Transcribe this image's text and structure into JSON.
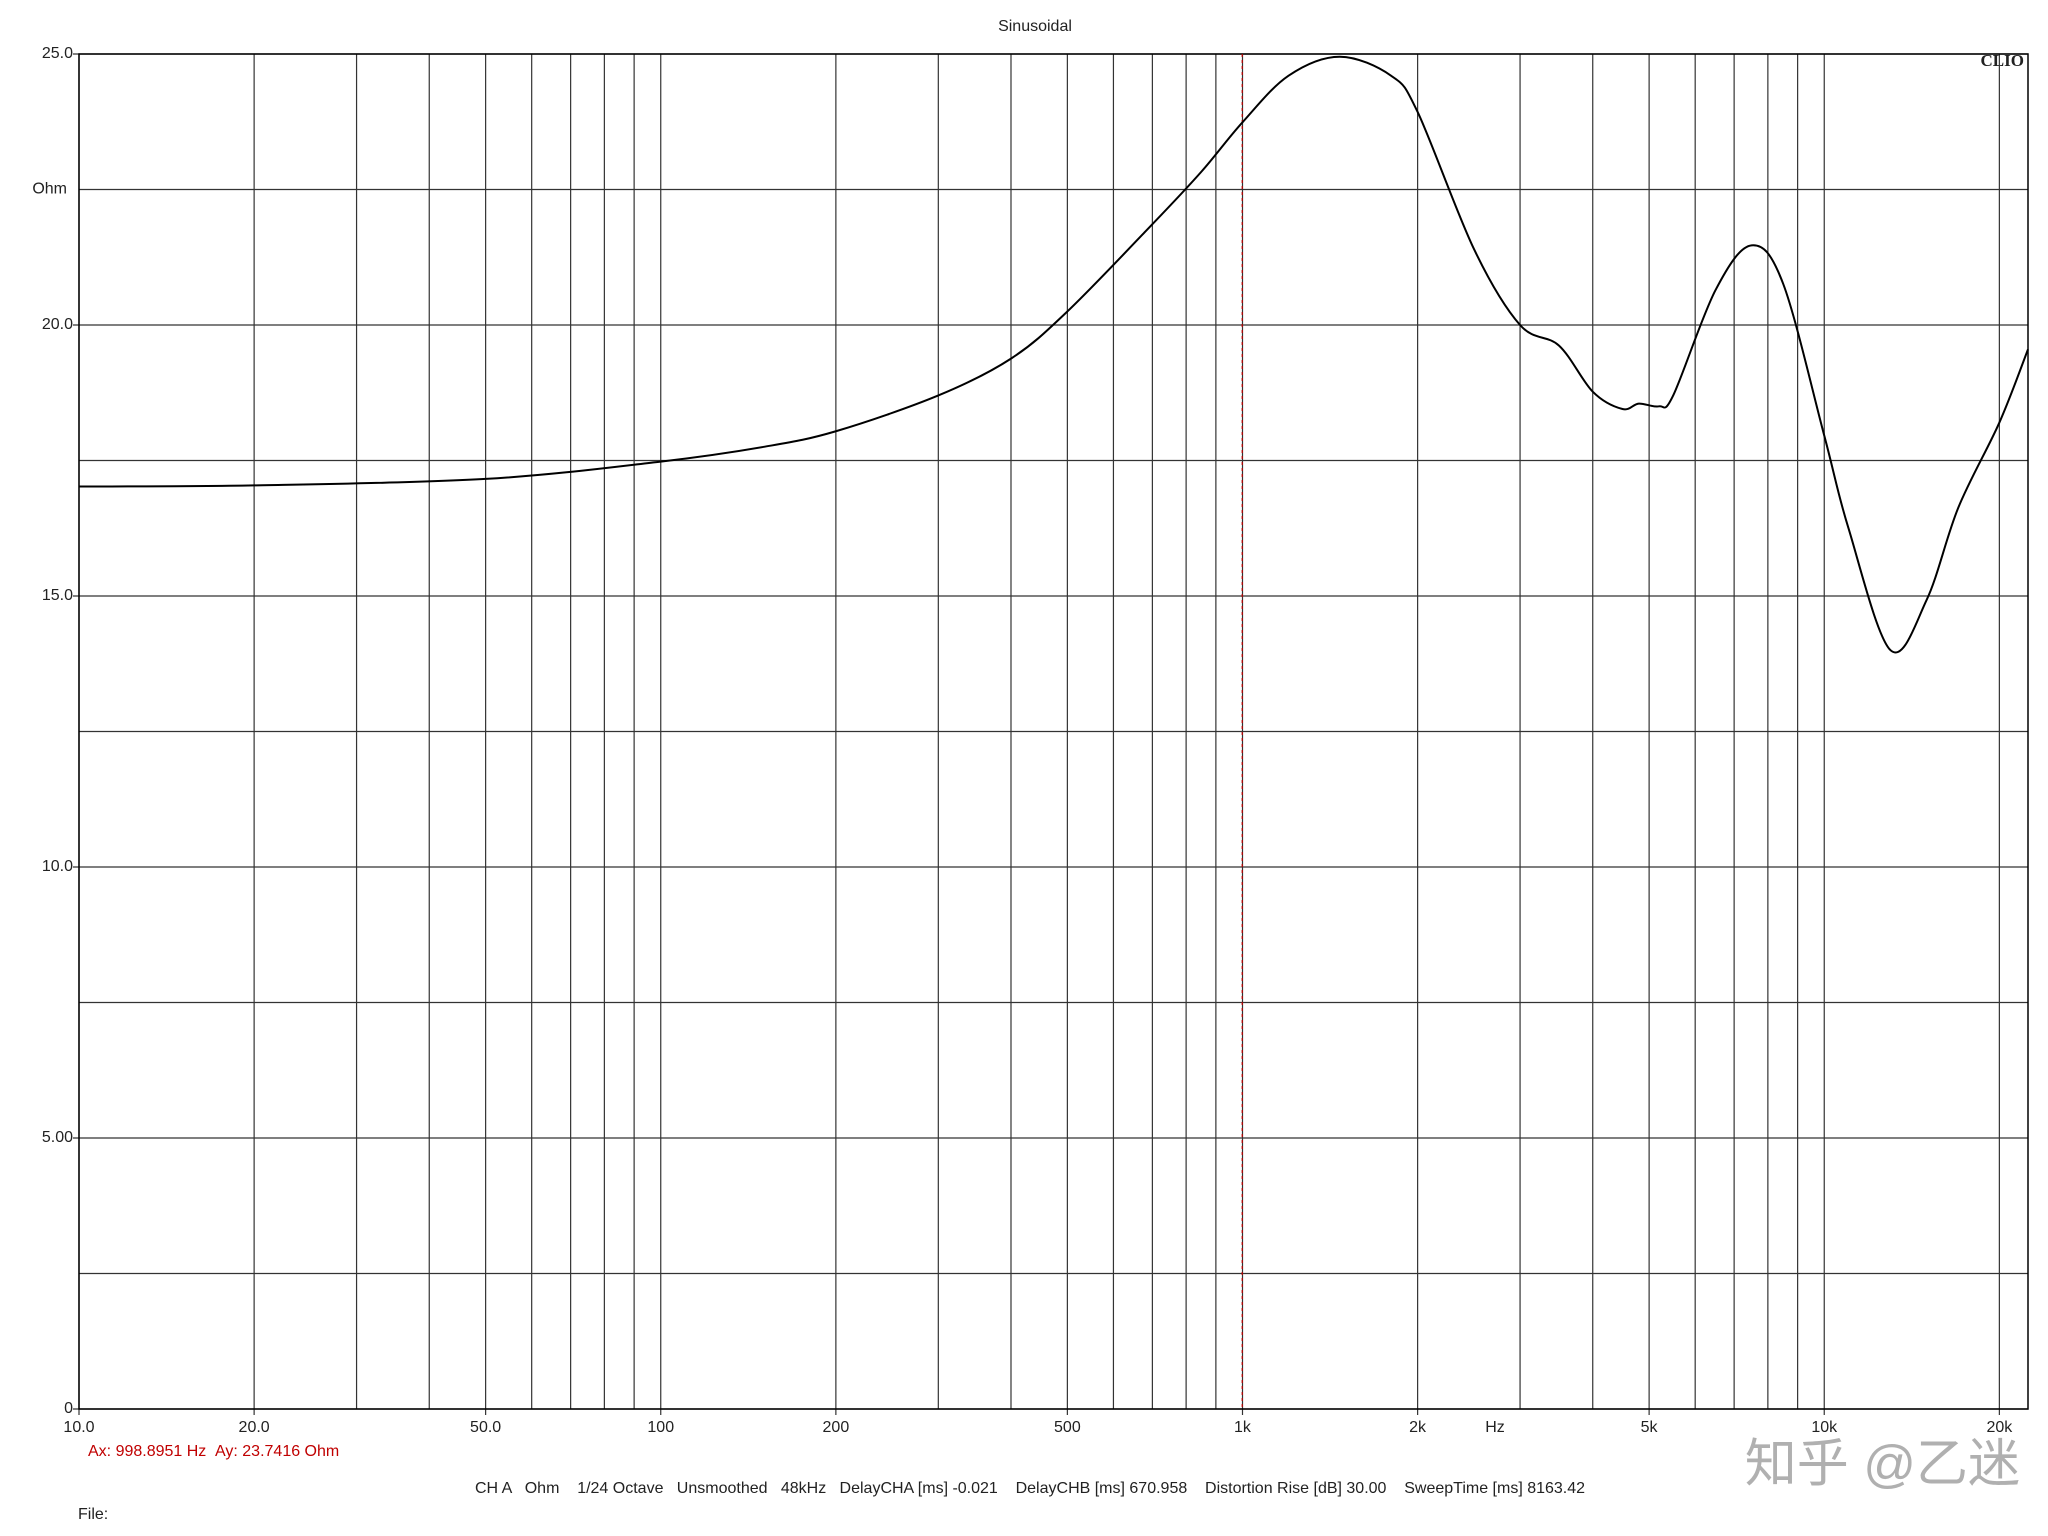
{
  "chart_data": {
    "type": "line",
    "title": "Sinusoidal",
    "y_label": "Ohm",
    "x_label": "Hz",
    "brand": "CLIO",
    "x_log": true,
    "xlim": [
      10,
      22400
    ],
    "ylim": [
      0,
      25
    ],
    "xticks": [
      {
        "value": 10,
        "label": "10.0"
      },
      {
        "value": 20,
        "label": "20.0"
      },
      {
        "value": 50,
        "label": "50.0"
      },
      100,
      200,
      500,
      {
        "value": 1000,
        "label": "1k"
      },
      {
        "value": 2000,
        "label": "2k"
      },
      {
        "value": 5000,
        "label": "5k"
      },
      {
        "value": 10000,
        "label": "10k"
      },
      {
        "value": 20000,
        "label": "20k"
      }
    ],
    "xgrid": [
      10,
      20,
      30,
      40,
      50,
      60,
      70,
      80,
      90,
      100,
      200,
      300,
      400,
      500,
      600,
      700,
      800,
      900,
      1000,
      2000,
      3000,
      4000,
      5000,
      6000,
      7000,
      8000,
      9000,
      10000,
      20000
    ],
    "yticks": [
      0,
      {
        "value": 5,
        "label": "5.00"
      },
      {
        "value": 10,
        "label": "10.0"
      },
      {
        "value": 15,
        "label": "15.0"
      },
      {
        "value": 20,
        "label": "20.0"
      },
      {
        "value": 25,
        "label": "25.0"
      }
    ],
    "ygrid": [
      2.5,
      7.5,
      12.5,
      17.5,
      22.5
    ],
    "series": [
      {
        "name": "CH A",
        "color": "#000000",
        "x": [
          10,
          20,
          50,
          100,
          150,
          200,
          300,
          400,
          500,
          700,
          850,
          1000,
          1200,
          1470,
          1800,
          2000,
          2500,
          3000,
          3500,
          4000,
          4500,
          4800,
          5200,
          5500,
          6500,
          7500,
          8500,
          10000,
          11000,
          13000,
          15000,
          17000,
          20000,
          22400
        ],
        "values": [
          17.02,
          17.04,
          17.16,
          17.48,
          17.75,
          18.04,
          18.7,
          19.38,
          20.25,
          21.86,
          22.83,
          23.74,
          24.6,
          24.95,
          24.6,
          23.93,
          21.4,
          20.0,
          19.62,
          18.77,
          18.45,
          18.55,
          18.5,
          18.7,
          20.64,
          21.47,
          20.76,
          17.96,
          16.26,
          14.0,
          14.93,
          16.63,
          18.2,
          19.55
        ]
      }
    ],
    "cursor": {
      "x": 998.8951,
      "y": 23.7416,
      "color": "#c00000",
      "x_text": "Ax: 998.8951 Hz",
      "y_text": "Ay: 23.7416 Ohm"
    },
    "footer": "CH A   Ohm    1/24 Octave   Unsmoothed   48kHz   DelayCHA [ms] -0.021    DelayCHB [ms] 670.958    Distortion Rise [dB] 30.00    SweepTime [ms] 8163.42",
    "file_label": "File:",
    "watermark": "知乎 @乙迷"
  }
}
